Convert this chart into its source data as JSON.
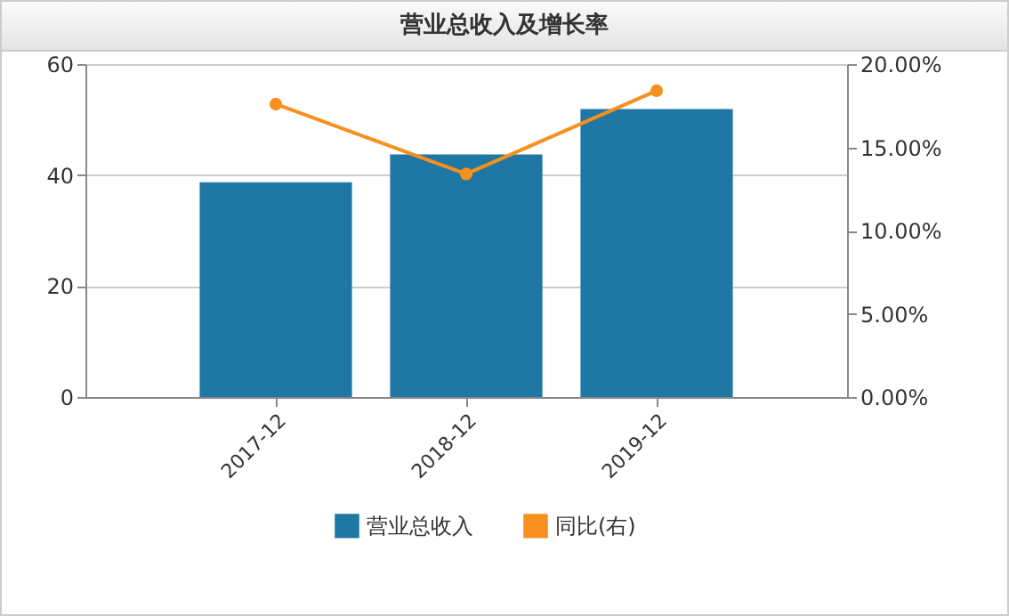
{
  "chart_data": {
    "type": "bar",
    "title": "营业总收入及增长率",
    "categories": [
      "2017-12",
      "2018-12",
      "2019-12"
    ],
    "series": [
      {
        "name": "营业总收入",
        "color": "#1f77a4",
        "values": [
          38.7,
          43.7,
          51.9
        ]
      },
      {
        "name": "同比(右)",
        "type": "line",
        "axis": "y2",
        "color": "#f7901e",
        "values": [
          17.6,
          13.4,
          18.4
        ]
      }
    ],
    "ylim": [
      0,
      60
    ],
    "yticks": [
      0,
      20,
      40,
      60
    ],
    "y2lim": [
      0,
      20
    ],
    "y2ticks": [
      {
        "value": 0,
        "label": "0.00%"
      },
      {
        "value": 5,
        "label": "5.00%"
      },
      {
        "value": 10,
        "label": "10.00%"
      },
      {
        "value": 15,
        "label": "15.00%"
      },
      {
        "value": 20,
        "label": "20.00%"
      }
    ],
    "grid": "y",
    "legend": "bottom",
    "marker": "circle",
    "line_style": "solid"
  }
}
